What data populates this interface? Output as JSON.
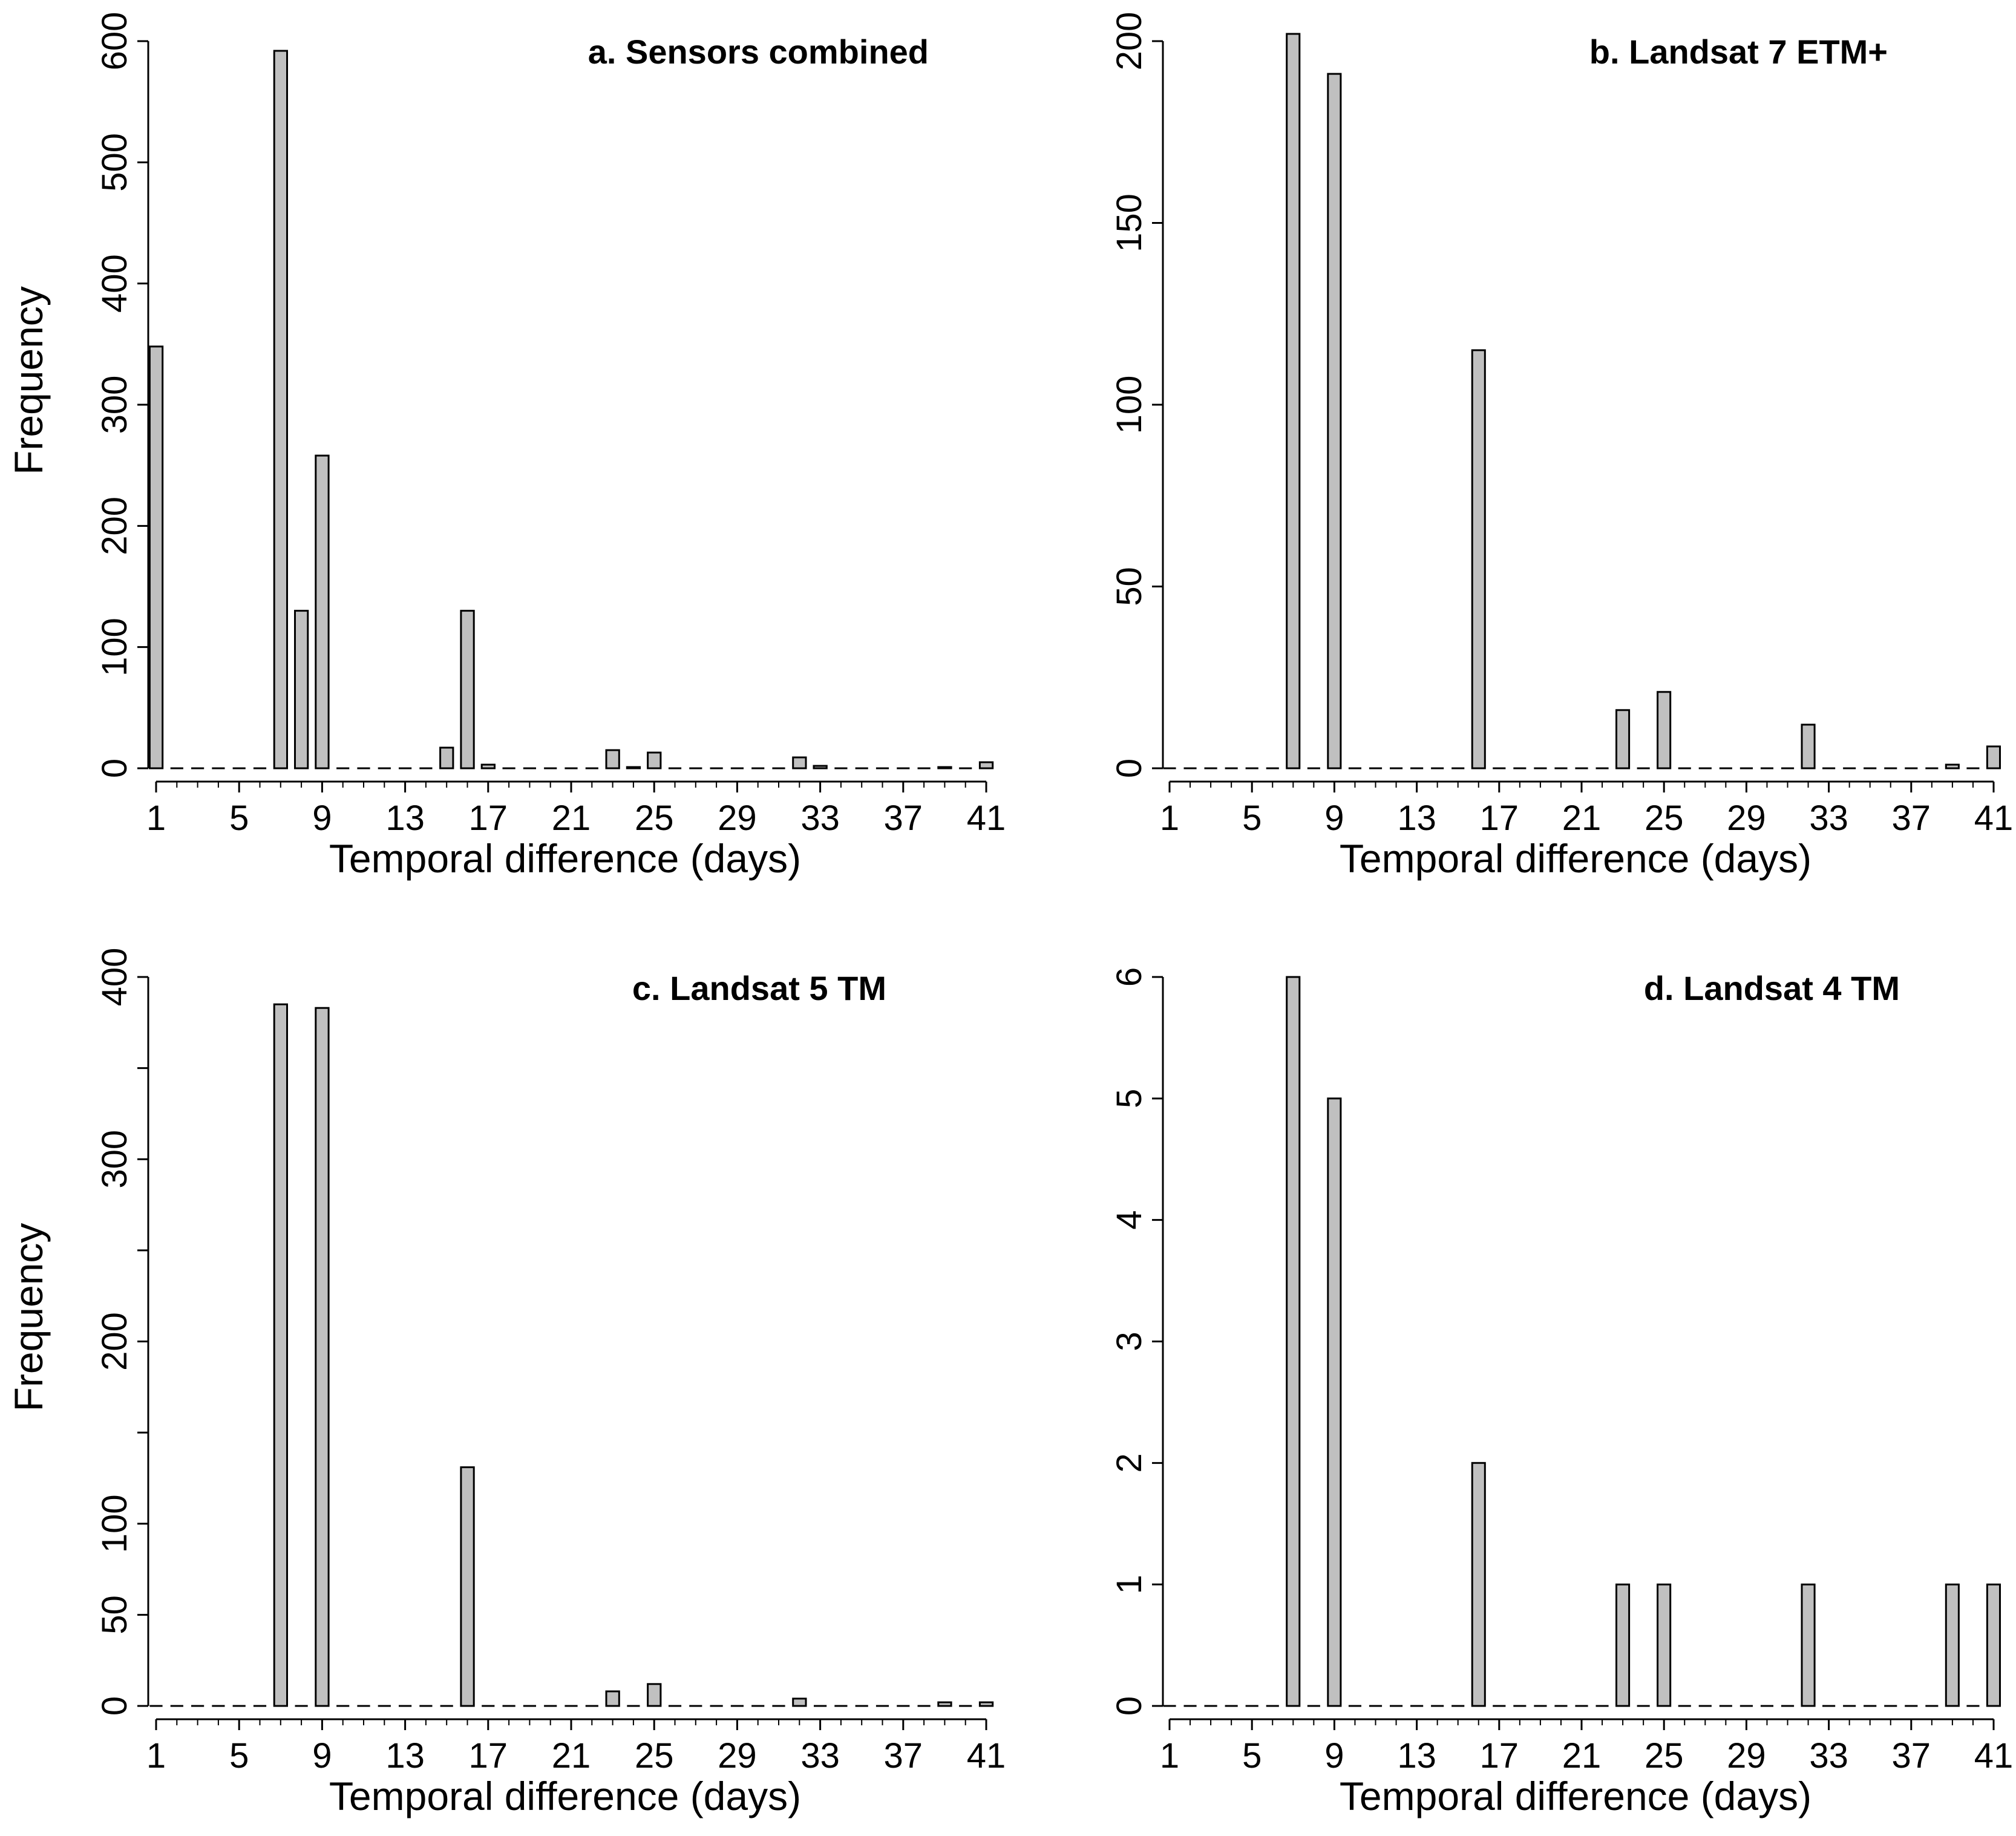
{
  "chart_data": [
    {
      "type": "bar",
      "title": "a. Sensors combined",
      "xlabel": "Temporal difference (days)",
      "ylabel": "Frequency",
      "ylim": [
        0,
        600
      ],
      "yticks": [
        0,
        100,
        200,
        300,
        400,
        500,
        600
      ],
      "xticks": [
        1,
        5,
        9,
        13,
        17,
        21,
        25,
        29,
        33,
        37,
        41
      ],
      "categories": [
        1,
        2,
        3,
        4,
        5,
        6,
        7,
        8,
        9,
        10,
        11,
        12,
        13,
        14,
        15,
        16,
        17,
        18,
        19,
        20,
        21,
        22,
        23,
        24,
        25,
        26,
        27,
        28,
        29,
        30,
        31,
        32,
        33,
        34,
        35,
        36,
        37,
        38,
        39,
        40,
        41
      ],
      "values": [
        348,
        0,
        0,
        0,
        0,
        0,
        592,
        130,
        258,
        0,
        0,
        0,
        0,
        0,
        17,
        130,
        3,
        0,
        0,
        0,
        0,
        0,
        15,
        1,
        13,
        0,
        0,
        0,
        0,
        0,
        0,
        9,
        2,
        0,
        0,
        0,
        0,
        0,
        1,
        0,
        5
      ]
    },
    {
      "type": "bar",
      "title": "b. Landsat 7 ETM+",
      "xlabel": "Temporal difference (days)",
      "ylabel": "",
      "ylim": [
        0,
        200
      ],
      "yticks": [
        0,
        50,
        100,
        150,
        200
      ],
      "xticks": [
        1,
        5,
        9,
        13,
        17,
        21,
        25,
        29,
        33,
        37,
        41
      ],
      "categories": [
        1,
        2,
        3,
        4,
        5,
        6,
        7,
        8,
        9,
        10,
        11,
        12,
        13,
        14,
        15,
        16,
        17,
        18,
        19,
        20,
        21,
        22,
        23,
        24,
        25,
        26,
        27,
        28,
        29,
        30,
        31,
        32,
        33,
        34,
        35,
        36,
        37,
        38,
        39,
        40,
        41
      ],
      "values": [
        0,
        0,
        0,
        0,
        0,
        0,
        202,
        0,
        191,
        0,
        0,
        0,
        0,
        0,
        0,
        115,
        0,
        0,
        0,
        0,
        0,
        0,
        16,
        0,
        21,
        0,
        0,
        0,
        0,
        0,
        0,
        12,
        0,
        0,
        0,
        0,
        0,
        0,
        1,
        0,
        6
      ]
    },
    {
      "type": "bar",
      "title": "c. Landsat 5 TM",
      "xlabel": "Temporal difference (days)",
      "ylabel": "Frequency",
      "ylim": [
        0,
        400
      ],
      "yticks": [
        0,
        50,
        100,
        200,
        300,
        400
      ],
      "yticks_minor": [
        150,
        250,
        350
      ],
      "xticks": [
        1,
        5,
        9,
        13,
        17,
        21,
        25,
        29,
        33,
        37,
        41
      ],
      "categories": [
        1,
        2,
        3,
        4,
        5,
        6,
        7,
        8,
        9,
        10,
        11,
        12,
        13,
        14,
        15,
        16,
        17,
        18,
        19,
        20,
        21,
        22,
        23,
        24,
        25,
        26,
        27,
        28,
        29,
        30,
        31,
        32,
        33,
        34,
        35,
        36,
        37,
        38,
        39,
        40,
        41
      ],
      "values": [
        0,
        0,
        0,
        0,
        0,
        0,
        385,
        0,
        383,
        0,
        0,
        0,
        0,
        0,
        0,
        131,
        0,
        0,
        0,
        0,
        0,
        0,
        8,
        0,
        12,
        0,
        0,
        0,
        0,
        0,
        0,
        4,
        0,
        0,
        0,
        0,
        0,
        0,
        2,
        0,
        2
      ]
    },
    {
      "type": "bar",
      "title": "d. Landsat 4 TM",
      "xlabel": "Temporal difference (days)",
      "ylabel": "",
      "ylim": [
        0,
        6
      ],
      "yticks": [
        0,
        1,
        2,
        3,
        4,
        5,
        6
      ],
      "xticks": [
        1,
        5,
        9,
        13,
        17,
        21,
        25,
        29,
        33,
        37,
        41
      ],
      "categories": [
        1,
        2,
        3,
        4,
        5,
        6,
        7,
        8,
        9,
        10,
        11,
        12,
        13,
        14,
        15,
        16,
        17,
        18,
        19,
        20,
        21,
        22,
        23,
        24,
        25,
        26,
        27,
        28,
        29,
        30,
        31,
        32,
        33,
        34,
        35,
        36,
        37,
        38,
        39,
        40,
        41
      ],
      "values": [
        0,
        0,
        0,
        0,
        0,
        0,
        6,
        0,
        5,
        0,
        0,
        0,
        0,
        0,
        0,
        2,
        0,
        0,
        0,
        0,
        0,
        0,
        1,
        0,
        1,
        0,
        0,
        0,
        0,
        0,
        0,
        1,
        0,
        0,
        0,
        0,
        0,
        0,
        1,
        0,
        1
      ]
    }
  ]
}
